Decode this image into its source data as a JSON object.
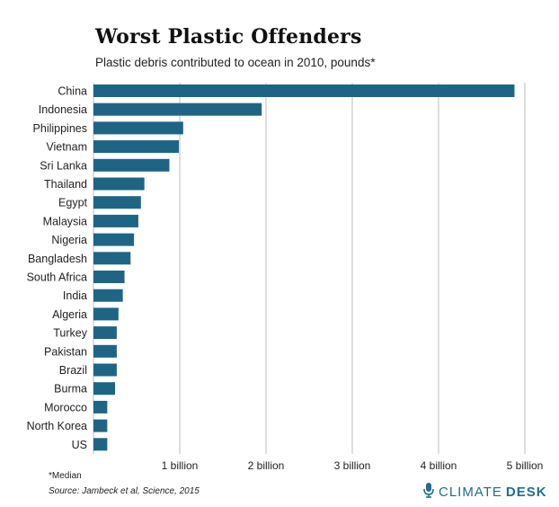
{
  "title": "Worst Plastic Offenders",
  "subtitle": "Plastic debris contributed to ocean in 2010, pounds*",
  "footnote": "*Median",
  "source": "Source: Jambeck et al, Science, 2015",
  "logo": {
    "part1": "CLIMATE",
    "part2": "DESK",
    "icon": "microphone-icon"
  },
  "colors": {
    "bar": "#1e6585",
    "grid": "#bdbdbd",
    "logo": "#1f6f8b"
  },
  "chart_data": {
    "type": "bar",
    "orientation": "horizontal",
    "categories": [
      "China",
      "Indonesia",
      "Philippines",
      "Vietnam",
      "Sri Lanka",
      "Thailand",
      "Egypt",
      "Malaysia",
      "Nigeria",
      "Bangladesh",
      "South Africa",
      "India",
      "Algeria",
      "Turkey",
      "Pakistan",
      "Brazil",
      "Burma",
      "Morocco",
      "North Korea",
      "US"
    ],
    "values": [
      4.88,
      1.95,
      1.04,
      0.99,
      0.88,
      0.59,
      0.55,
      0.52,
      0.47,
      0.43,
      0.36,
      0.34,
      0.29,
      0.27,
      0.27,
      0.27,
      0.25,
      0.16,
      0.16,
      0.16
    ],
    "unit": "billion pounds",
    "xlim": [
      0,
      5
    ],
    "xticks": [
      1,
      2,
      3,
      4,
      5
    ],
    "xtick_labels": [
      "1 billion",
      "2 billion",
      "3 billion",
      "4 billion",
      "5 billion"
    ],
    "grid": true
  }
}
